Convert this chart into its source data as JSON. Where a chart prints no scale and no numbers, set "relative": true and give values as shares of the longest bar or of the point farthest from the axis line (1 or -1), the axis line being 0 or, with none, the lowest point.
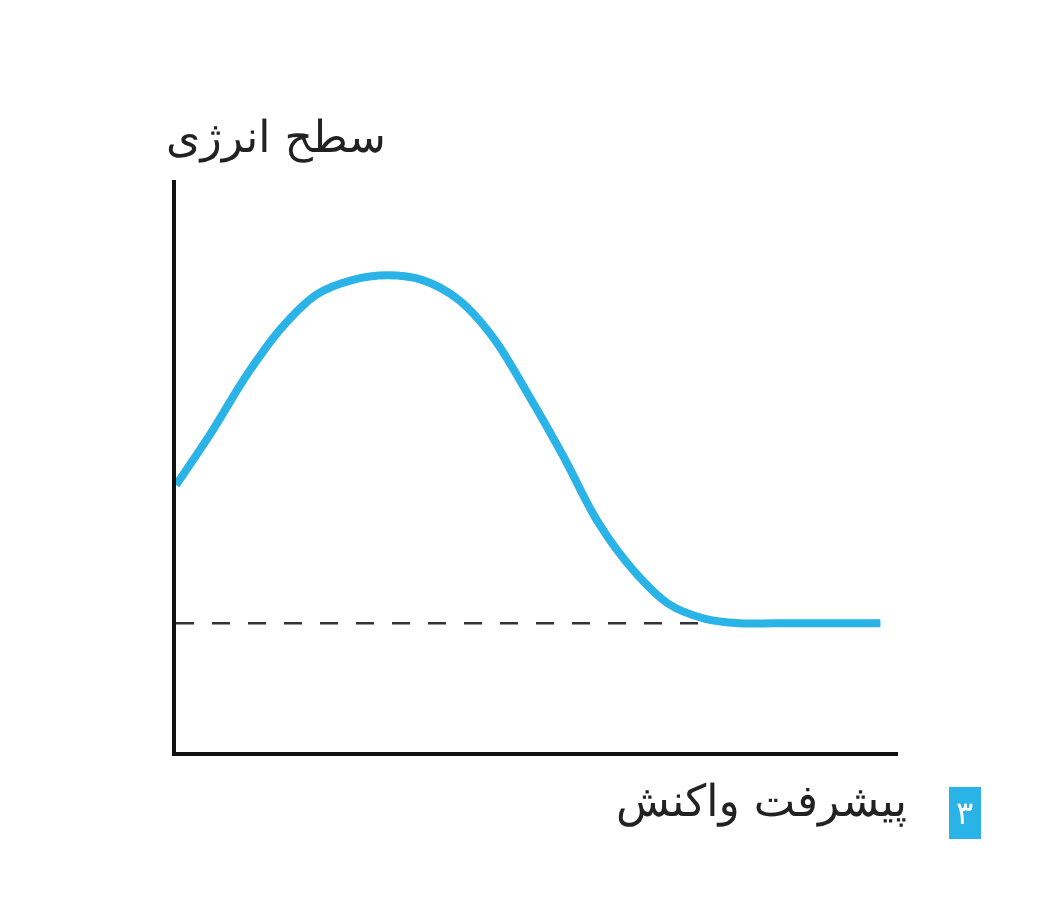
{
  "chart_data": {
    "type": "line",
    "relative": true,
    "ylabel": "سطح انرژی",
    "xlabel": "پیشرفت واکنش",
    "categories": [
      null,
      null,
      null,
      null,
      null,
      null,
      null,
      null,
      null,
      null,
      null,
      null,
      null,
      null,
      null,
      null,
      null,
      null,
      null,
      null,
      null
    ],
    "series": [
      {
        "color": "#29b3e6",
        "values": [
          0.56,
          0.67,
          0.79,
          0.89,
          0.96,
          0.99,
          1.0,
          0.99,
          0.95,
          0.87,
          0.75,
          0.62,
          0.48,
          0.38,
          0.31,
          0.28,
          0.27,
          0.27,
          0.27,
          0.27,
          0.27
        ]
      }
    ],
    "ref_lines": [
      {
        "axis": "y",
        "value": 0.27,
        "color": "#333333",
        "line_style": "dashed"
      }
    ],
    "annotations": [
      "۳"
    ],
    "marker": "none",
    "line_style": "solid"
  }
}
